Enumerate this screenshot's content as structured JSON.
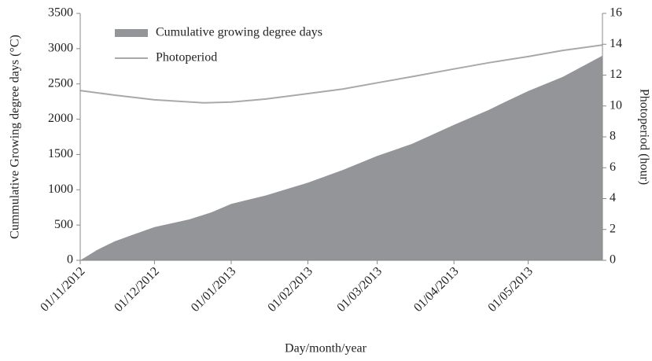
{
  "chart_data": {
    "type": "area-line",
    "y_label": "Cummulative Growing degree days (°C)",
    "y2_label": "Photoperiod (hour)",
    "x_label": "Day/month/year",
    "xlim": [
      "2012-11-01",
      "2013-05-31"
    ],
    "xticks": [
      {
        "value": "2012-11-01",
        "label": "01/11/2012"
      },
      {
        "value": "2012-12-01",
        "label": "01/12/2012"
      },
      {
        "value": "2013-01-01",
        "label": "01/01/2013"
      },
      {
        "value": "2013-02-01",
        "label": "01/02/2013"
      },
      {
        "value": "2013-03-01",
        "label": "01/03/2013"
      },
      {
        "value": "2013-04-01",
        "label": "01/04/2013"
      },
      {
        "value": "2013-05-01",
        "label": "01/05/2013"
      }
    ],
    "ylim": [
      0,
      3500
    ],
    "yticks": [
      0,
      500,
      1000,
      1500,
      2000,
      2500,
      3000,
      3500
    ],
    "y2lim": [
      0,
      16
    ],
    "y2ticks": [
      0,
      2,
      4,
      6,
      8,
      10,
      12,
      14,
      16
    ],
    "legend": "upper left",
    "series": [
      {
        "name": "Cumulative growing degree days",
        "type": "area",
        "color": "#939598",
        "x": [
          "2012-11-01",
          "2012-11-08",
          "2012-11-15",
          "2012-11-22",
          "2012-12-01",
          "2012-12-15",
          "2012-12-24",
          "2013-01-01",
          "2013-01-15",
          "2013-02-01",
          "2013-02-15",
          "2013-03-01",
          "2013-03-15",
          "2013-04-01",
          "2013-04-15",
          "2013-04-22",
          "2013-05-01",
          "2013-05-15",
          "2013-05-31"
        ],
        "values": [
          0,
          150,
          270,
          360,
          470,
          580,
          680,
          800,
          920,
          1100,
          1280,
          1480,
          1650,
          1920,
          2130,
          2250,
          2400,
          2600,
          2900
        ]
      },
      {
        "name": "Photoperiod",
        "type": "line",
        "color": "#a7a9ac",
        "axis": "y2",
        "x": [
          "2012-11-01",
          "2012-11-15",
          "2012-12-01",
          "2012-12-21",
          "2013-01-01",
          "2013-01-15",
          "2013-02-01",
          "2013-02-15",
          "2013-03-01",
          "2013-03-15",
          "2013-04-01",
          "2013-04-15",
          "2013-05-01",
          "2013-05-15",
          "2013-05-31"
        ],
        "values": [
          11.0,
          10.7,
          10.4,
          10.2,
          10.25,
          10.45,
          10.8,
          11.1,
          11.5,
          11.9,
          12.4,
          12.8,
          13.2,
          13.6,
          13.95
        ]
      }
    ]
  }
}
